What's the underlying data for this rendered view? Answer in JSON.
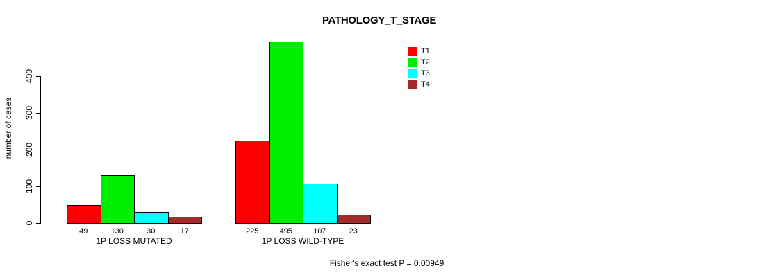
{
  "chart_data": {
    "type": "bar",
    "title": "PATHOLOGY_T_STAGE",
    "ylabel": "number of cases",
    "xlabel": "",
    "ylim": [
      0,
      400
    ],
    "yticks": [
      0,
      100,
      200,
      300,
      400
    ],
    "grid": false,
    "legend_position": "top-right",
    "series": [
      {
        "name": "T1",
        "color": "#ff0000",
        "values": [
          49,
          225
        ]
      },
      {
        "name": "T2",
        "color": "#00ee00",
        "values": [
          130,
          495
        ]
      },
      {
        "name": "T3",
        "color": "#00ffff",
        "values": [
          30,
          107
        ]
      },
      {
        "name": "T4",
        "color": "#a52a2a",
        "values": [
          17,
          23
        ]
      }
    ],
    "groups": [
      {
        "label": "1P LOSS MUTATED",
        "values": [
          49,
          130,
          30,
          17
        ],
        "value_labels": [
          "49",
          "130",
          "30",
          "17"
        ]
      },
      {
        "label": "1P LOSS WILD-TYPE",
        "values": [
          225,
          495,
          107,
          23
        ],
        "value_labels": [
          "225",
          "495",
          "107",
          "23"
        ]
      }
    ],
    "footnote": "Fisher's exact test P = 0.00949",
    "axis_color": "#000000",
    "bar_border_color": "#000000"
  }
}
